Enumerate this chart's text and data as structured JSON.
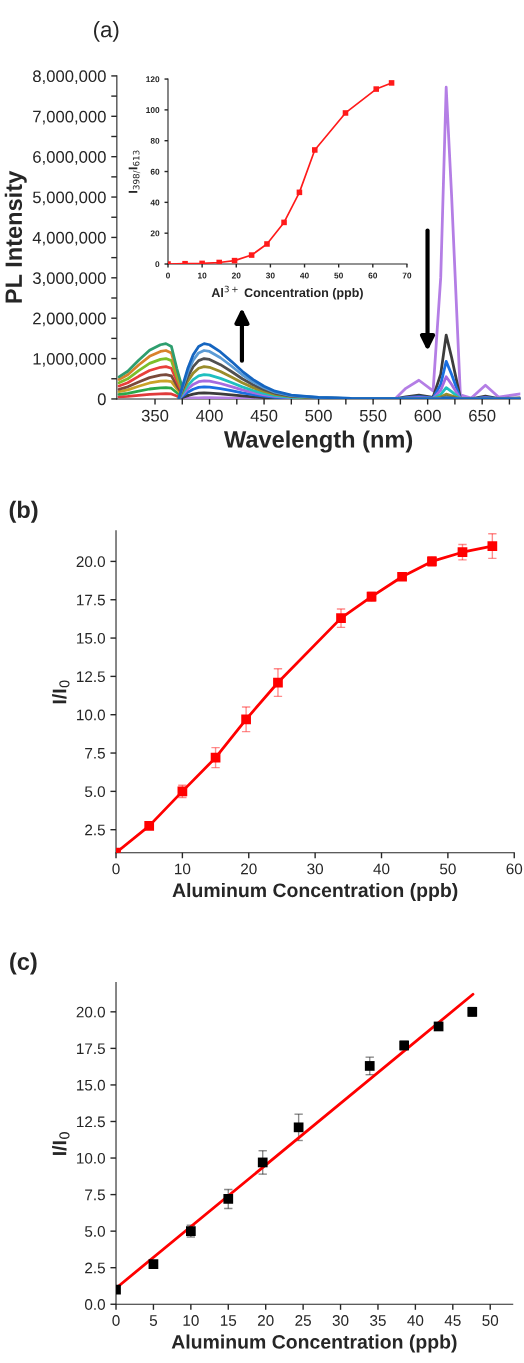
{
  "chart_data": [
    {
      "type": "line",
      "title": "(a)",
      "xlabel": "Wavelength (nm)",
      "ylabel": "PL Intensity",
      "xlim": [
        315,
        685
      ],
      "ylim": [
        0,
        8000000
      ],
      "xticks": [
        350,
        {
          "value": 375,
          "label": null
        },
        400,
        {
          "value": 425,
          "label": null
        },
        450,
        {
          "value": 475,
          "label": null
        },
        500,
        {
          "value": 525,
          "label": null
        },
        550,
        {
          "value": 575,
          "label": null
        },
        600,
        {
          "value": 625,
          "label": null
        },
        650,
        {
          "value": 675,
          "label": null
        }
      ],
      "yticks": [
        0,
        {
          "value": 500000,
          "label": null
        },
        {
          "value": 1000000,
          "label": "1,000,000"
        },
        {
          "value": 1500000,
          "label": null
        },
        {
          "value": 2000000,
          "label": "2,000,000"
        },
        {
          "value": 2500000,
          "label": null
        },
        {
          "value": 3000000,
          "label": "3,000,000"
        },
        {
          "value": 3500000,
          "label": null
        },
        {
          "value": 4000000,
          "label": "4,000,000"
        },
        {
          "value": 4500000,
          "label": null
        },
        {
          "value": 5000000,
          "label": "5,000,000"
        },
        {
          "value": 5500000,
          "label": null
        },
        {
          "value": 6000000,
          "label": "6,000,000"
        },
        {
          "value": 6500000,
          "label": null
        },
        {
          "value": 7000000,
          "label": "7,000,000"
        },
        {
          "value": 7500000,
          "label": null
        },
        {
          "value": 8000000,
          "label": "8,000,000"
        }
      ],
      "grid": false,
      "marker": "none",
      "series": [
        {
          "color": "#e03a3a",
          "x": [
            317,
            325,
            335,
            345,
            355,
            360,
            365,
            370,
            375,
            380
          ],
          "values": [
            52000,
            65000,
            91000,
            114400,
            127400,
            130000,
            123500,
            71500,
            26000,
            3900
          ]
        },
        {
          "color": "#2aa84a",
          "x": [
            317,
            325,
            335,
            345,
            355,
            360,
            365,
            370,
            375,
            380
          ],
          "values": [
            112000,
            140000,
            196000,
            246400,
            274400,
            280000,
            266000,
            154000,
            56000,
            8400
          ]
        },
        {
          "color": "#c9a227",
          "x": [
            317,
            325,
            335,
            345,
            355,
            360,
            365,
            370,
            375,
            380
          ],
          "values": [
            180000,
            225000,
            315000,
            396000,
            441000,
            450000,
            427500,
            247500,
            90000,
            13500
          ]
        },
        {
          "color": "#7a4a3a",
          "x": [
            317,
            325,
            335,
            345,
            355,
            360,
            365,
            370,
            375,
            380
          ],
          "values": [
            240000,
            300000,
            420000,
            528000,
            588000,
            600000,
            570000,
            330000,
            120000,
            18000
          ]
        },
        {
          "color": "#e8403a",
          "x": [
            317,
            325,
            335,
            345,
            355,
            360,
            365,
            370,
            375,
            380
          ],
          "values": [
            320000,
            400000,
            560000,
            704000,
            784000,
            800000,
            760000,
            440000,
            160000,
            24000
          ]
        },
        {
          "color": "#7cbf2a",
          "x": [
            317,
            325,
            335,
            345,
            355,
            360,
            365,
            370,
            375,
            380
          ],
          "values": [
            400000,
            500000,
            700000,
            880000,
            980000,
            1000000,
            950000,
            550000,
            200000,
            30000
          ]
        },
        {
          "color": "#d9822b",
          "x": [
            317,
            325,
            335,
            345,
            355,
            360,
            365,
            370,
            375,
            380
          ],
          "values": [
            480000,
            600000,
            840000,
            1056000,
            1176000,
            1200000,
            1140000,
            660000,
            240000,
            36000
          ]
        },
        {
          "color": "#2e9e6e",
          "x": [
            317,
            325,
            335,
            345,
            355,
            360,
            365,
            370,
            375,
            380
          ],
          "values": [
            548000,
            685000,
            959000,
            1205600,
            1342600,
            1370000,
            1301500,
            753500,
            274000,
            41100
          ]
        },
        {
          "color": "#b47ee5",
          "x": [
            372,
            380,
            385,
            390,
            395,
            400,
            410,
            420,
            430,
            440,
            450,
            460,
            475,
            500,
            530,
            570,
            580,
            592,
            605,
            612,
            617,
            622,
            630,
            640,
            653,
            665,
            685
          ],
          "values": [
            600,
            16500,
            24000,
            28500,
            30000,
            29400,
            25500,
            20400,
            15000,
            10500,
            6900,
            4200,
            2100,
            900,
            300,
            150,
            262480,
            463200,
            200720,
            3010800,
            7720000,
            5018000,
            100360,
            23160,
            339680,
            46320,
            123520
          ]
        },
        {
          "color": "#3c3c3c",
          "x": [
            372,
            380,
            385,
            390,
            395,
            400,
            410,
            420,
            430,
            440,
            450,
            460,
            475,
            500,
            530,
            570,
            580,
            592,
            605,
            612,
            617,
            622,
            630,
            640,
            653,
            665,
            685
          ],
          "values": [
            3000,
            82500,
            120000,
            142500,
            150000,
            147000,
            127500,
            102000,
            75000,
            52500,
            34500,
            21000,
            10500,
            4500,
            1500,
            750,
            53720,
            94800,
            41080,
            616200,
            1580000,
            1027000,
            20540,
            4740,
            69520,
            9480,
            25280
          ]
        },
        {
          "color": "#1a6fe0",
          "x": [
            372,
            380,
            385,
            390,
            395,
            400,
            410,
            420,
            430,
            440,
            450,
            460,
            475,
            500,
            530,
            570,
            580,
            592,
            605,
            612,
            617,
            622,
            630,
            640,
            653,
            665,
            685
          ],
          "values": [
            6000,
            165000,
            240000,
            285000,
            300000,
            294000,
            255000,
            204000,
            150000,
            105000,
            69000,
            42000,
            21000,
            9000,
            3000,
            1500,
            31620,
            55800,
            24180,
            362700,
            930000,
            604500,
            12090,
            2790,
            40920,
            5580,
            14880
          ]
        },
        {
          "color": "#a56be0",
          "x": [
            372,
            380,
            385,
            390,
            395,
            400,
            410,
            420,
            430,
            440,
            450,
            460,
            475,
            500,
            530,
            570,
            580,
            592,
            605,
            612,
            617,
            622,
            630,
            640,
            653,
            665,
            685
          ],
          "values": [
            9000,
            247500,
            360000,
            427500,
            450000,
            441000,
            382500,
            306000,
            225000,
            157500,
            103500,
            63000,
            31500,
            13500,
            4500,
            2250,
            18700,
            33000,
            14300,
            214500,
            550000,
            357500,
            7150,
            1650,
            24200,
            3300,
            8800
          ]
        },
        {
          "color": "#1fbfbf",
          "x": [
            372,
            380,
            385,
            390,
            395,
            400,
            410,
            420,
            430,
            440,
            450,
            460,
            475,
            500,
            530,
            570,
            580,
            592,
            605,
            612,
            617,
            622,
            630,
            640
          ],
          "values": [
            12000,
            330000,
            480000,
            570000,
            600000,
            588000,
            510000,
            408000,
            300000,
            210000,
            138000,
            84000,
            42000,
            18000,
            6000,
            3000,
            9520,
            16800,
            7280,
            109200,
            280000,
            182000,
            3640,
            840
          ]
        },
        {
          "color": "#9a8c2a",
          "x": [
            372,
            380,
            385,
            390,
            395,
            400,
            410,
            420,
            430,
            440,
            450,
            460,
            475,
            500,
            530,
            570,
            580,
            592,
            605,
            612,
            617,
            622,
            630,
            640,
            653,
            665,
            685
          ],
          "values": [
            16000,
            440000,
            640000,
            760000,
            800000,
            784000,
            680000,
            544000,
            400000,
            280000,
            184000,
            112000,
            56000,
            24000,
            8000,
            4000,
            4080,
            7200,
            3120,
            46800,
            120000,
            78000,
            1560,
            360,
            5280,
            720,
            1920
          ]
        },
        {
          "color": "#505050",
          "x": [
            372,
            380,
            385,
            390,
            395,
            400,
            410,
            420,
            430,
            440,
            450,
            460,
            475,
            500,
            530,
            570,
            580,
            592,
            605,
            612,
            617,
            622,
            630,
            640,
            653,
            665,
            685
          ],
          "values": [
            20000,
            550000,
            800000,
            950000,
            1000000,
            980000,
            850000,
            680000,
            500000,
            350000,
            230000,
            140000,
            70000,
            30000,
            10000,
            5000,
            1700,
            3000,
            1300,
            19500,
            50000,
            32500,
            650,
            150,
            2200,
            300,
            800
          ]
        },
        {
          "color": "#5b9bd5",
          "x": [
            372,
            380,
            385,
            390,
            395,
            400,
            410,
            420,
            430,
            440,
            450,
            460,
            475,
            500,
            530,
            570,
            580,
            592,
            605,
            612,
            617,
            622,
            630,
            640,
            653,
            665,
            685
          ],
          "values": [
            24000,
            660000,
            960000,
            1140000,
            1200000,
            1176000,
            1020000,
            816000,
            600000,
            420000,
            276000,
            168000,
            84000,
            36000,
            12000,
            6000,
            1020,
            1800,
            780,
            11700,
            30000,
            19500,
            390,
            90,
            1320,
            180,
            480
          ]
        },
        {
          "color": "#1565c0",
          "x": [
            372,
            380,
            385,
            390,
            395,
            400,
            410,
            420,
            430,
            440,
            450,
            460,
            475,
            500,
            530,
            570,
            580,
            592,
            605,
            612,
            617,
            622,
            630,
            640,
            653,
            665,
            685
          ],
          "values": [
            27400,
            753500,
            1096000,
            1301500,
            1370000,
            1342600,
            1164500,
            931600,
            685000,
            479500,
            315100,
            191800,
            95900,
            41100,
            13700,
            6850,
            680,
            1200,
            520,
            7800,
            20000,
            13000,
            260,
            60,
            880,
            120,
            320
          ]
        }
      ]
    },
    {
      "type": "line",
      "xlabel": "Al$^{3+}$ Concentration (ppb)",
      "ylabel": "I$_{398/}$I$_{613}$",
      "x": [
        0,
        5,
        10,
        15,
        19.5,
        24.5,
        29,
        34,
        38.5,
        43,
        52,
        61,
        65.5
      ],
      "xlim": [
        0,
        70
      ],
      "ylim": [
        0,
        120
      ],
      "xticks": [
        0,
        10,
        20,
        30,
        40,
        50,
        60,
        70
      ],
      "yticks": [
        0,
        20,
        40,
        60,
        80,
        100,
        120
      ],
      "grid": false,
      "marker": "square",
      "series": [
        {
          "color": "#ff1a1a",
          "values": [
            0,
            0.2,
            0.4,
            1,
            2.2,
            5.8,
            13,
            27,
            46.5,
            74,
            98,
            113.5,
            117.5
          ]
        }
      ]
    },
    {
      "type": "line",
      "title": "(b)",
      "xlabel": "Aluminum Concentration (ppb)",
      "ylabel": "I/I$_{0}$",
      "x": [
        0,
        5,
        10,
        15,
        19.6,
        24.4,
        33.9,
        38.5,
        43.1,
        47.6,
        52.2,
        56.7
      ],
      "xlim": [
        0,
        60
      ],
      "ylim": [
        1.0,
        22.0
      ],
      "xticks": [
        0,
        10,
        20,
        30,
        40,
        50,
        60
      ],
      "yticks": [
        2.5,
        {
          "value": 5,
          "label": "5.0"
        },
        7.5,
        {
          "value": 10,
          "label": "10.0"
        },
        12.5,
        {
          "value": 15,
          "label": "15.0"
        },
        17.5,
        {
          "value": 20,
          "label": "20.0"
        }
      ],
      "grid": false,
      "marker": "square",
      "series": [
        {
          "color": "#ff0000",
          "values": [
            1.0,
            2.75,
            5.0,
            7.2,
            9.7,
            12.1,
            16.3,
            17.7,
            19.0,
            20.0,
            20.6,
            21.0
          ],
          "errors": [
            null,
            0.1,
            0.4,
            0.65,
            0.8,
            0.9,
            0.6,
            0.3,
            0.1,
            0.3,
            0.5,
            0.8
          ]
        }
      ]
    },
    {
      "type": "scatter",
      "title": "(c)",
      "xlabel": "Aluminum Concentration (ppb)",
      "ylabel": "I/I$_{0}$",
      "x": [
        0,
        5,
        10,
        15,
        19.6,
        24.4,
        33.9,
        38.5,
        43.1,
        47.6
      ],
      "xlim": [
        0,
        53
      ],
      "ylim": [
        0,
        22
      ],
      "xticks": [
        0,
        5,
        10,
        15,
        20,
        25,
        30,
        35,
        40,
        45,
        50
      ],
      "yticks": [
        {
          "value": 0,
          "label": "0.0"
        },
        2.5,
        {
          "value": 5,
          "label": "5.0"
        },
        7.5,
        {
          "value": 10,
          "label": "10.0"
        },
        12.5,
        {
          "value": 15,
          "label": "15.0"
        },
        17.5,
        {
          "value": 20,
          "label": "20.0"
        }
      ],
      "grid": false,
      "marker": "square",
      "series": [
        {
          "color": "#000000",
          "values": [
            1.0,
            2.75,
            5.0,
            7.2,
            9.7,
            12.1,
            16.3,
            17.7,
            19.0,
            20.0
          ],
          "errors": [
            null,
            0.1,
            0.4,
            0.65,
            0.8,
            0.9,
            0.6,
            0.3,
            0.1,
            0.3
          ]
        },
        {
          "type": "line",
          "color": "#ff0000",
          "marker": "none",
          "x": [
            0,
            47.7
          ],
          "values": [
            1.1,
            21.2
          ]
        }
      ]
    }
  ]
}
